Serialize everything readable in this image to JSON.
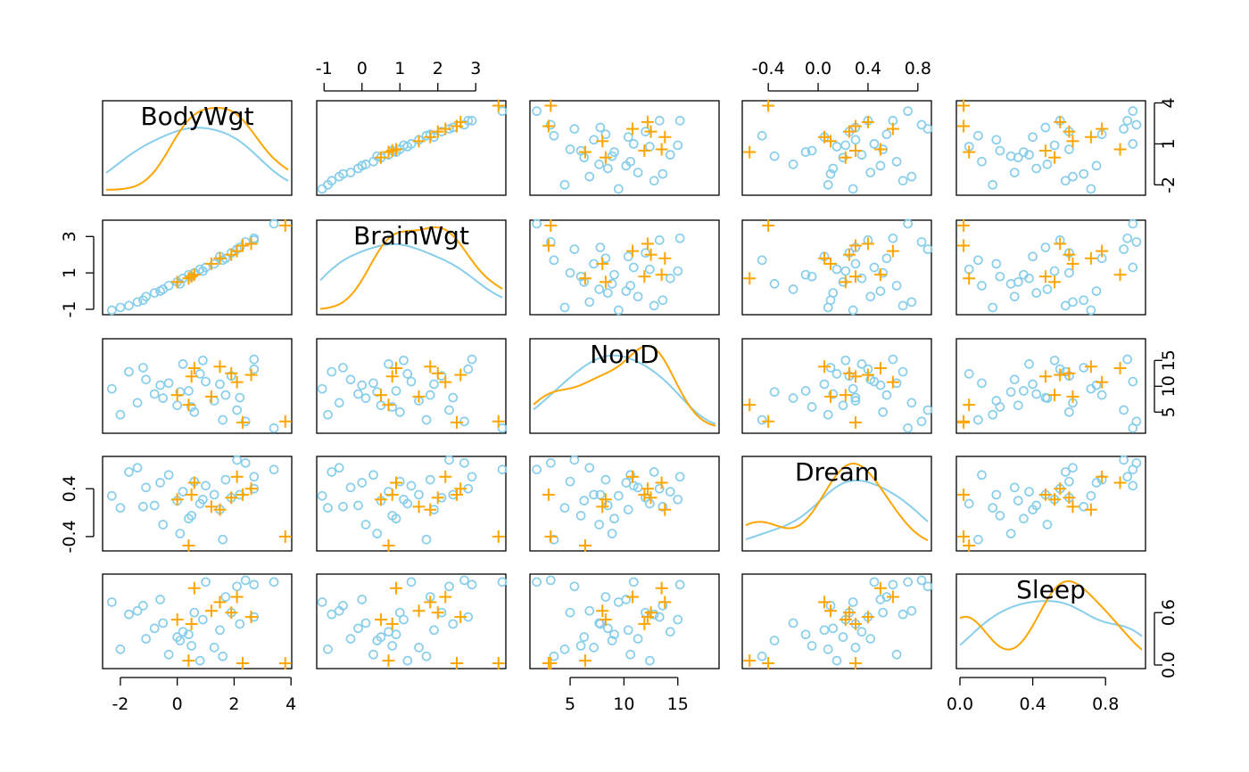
{
  "chart_data": {
    "type": "scatter",
    "variables": [
      "BodyWgt",
      "BrainWgt",
      "NonD",
      "Dream",
      "Sleep"
    ],
    "ranges": [
      [
        -2.5,
        3.9
      ],
      [
        -1.1,
        3.7
      ],
      [
        1.6,
        18.5
      ],
      [
        -0.58,
        0.88
      ],
      [
        0.0,
        1.0
      ]
    ],
    "ticks": [
      [
        -2,
        0,
        2,
        4
      ],
      [
        -1,
        1,
        3
      ],
      [
        5,
        10,
        15
      ],
      [
        -0.4,
        0.4
      ],
      [
        0.0,
        0.6
      ]
    ],
    "tick_labels": [
      [
        "-2",
        "0",
        "2",
        "4"
      ],
      [
        "-1",
        "1",
        "3"
      ],
      [
        "5",
        "10",
        "15"
      ],
      [
        "-0.4",
        "0.4"
      ],
      [
        "0.0",
        "0.6"
      ]
    ],
    "top_axis_ticks": [
      {
        "var": 1,
        "col": 1,
        "values": [
          -1,
          0,
          1,
          2,
          3
        ],
        "labels": [
          "-1",
          "0",
          "1",
          "2",
          "3"
        ]
      },
      {
        "var": 3,
        "col": 3,
        "values": [
          -0.4,
          0.0,
          0.4,
          0.8
        ],
        "labels": [
          "-0.4",
          "0.0",
          "0.4",
          "0.8"
        ]
      }
    ],
    "bottom_axis_ticks": [
      {
        "var": 0,
        "col": 0,
        "values": [
          -2,
          0,
          2,
          4
        ],
        "labels": [
          "-2",
          "0",
          "2",
          "4"
        ]
      },
      {
        "var": 2,
        "col": 2,
        "values": [
          5,
          10,
          15
        ],
        "labels": [
          "5",
          "10",
          "15"
        ]
      },
      {
        "var": 4,
        "col": 4,
        "values": [
          0.0,
          0.4,
          0.8
        ],
        "labels": [
          "0.0",
          "0.4",
          "0.8"
        ]
      }
    ],
    "left_axis_ticks": [
      {
        "var": 1,
        "row": 1,
        "values": [
          -1,
          1,
          3
        ],
        "labels": [
          "-1",
          "1",
          "3"
        ]
      },
      {
        "var": 3,
        "row": 3,
        "values": [
          -0.4,
          0.4
        ],
        "labels": [
          "-0.4",
          "0.4"
        ]
      }
    ],
    "right_axis_ticks": [
      {
        "var": 0,
        "row": 0,
        "values": [
          -2,
          1,
          4
        ],
        "labels": [
          "-2",
          "1",
          "4"
        ]
      },
      {
        "var": 2,
        "row": 2,
        "values": [
          5,
          10,
          15
        ],
        "labels": [
          "5",
          "10",
          "15"
        ]
      },
      {
        "var": 4,
        "row": 4,
        "values": [
          0.0,
          0.6
        ],
        "labels": [
          "0.0",
          "0.6"
        ]
      }
    ],
    "groups": [
      {
        "marker": "circle",
        "color": "#87CEEB",
        "points": [
          [
            3.4,
            3.7,
            1.9,
            0.72,
            0.95
          ],
          [
            2.7,
            2.9,
            15.2,
            0.6,
            0.92
          ],
          [
            2.7,
            2.8,
            13.3,
            0.4,
            0.55
          ],
          [
            2.4,
            2.7,
            3.2,
            0.83,
            0.97
          ],
          [
            2.1,
            2.3,
            5.4,
            0.88,
            0.9
          ],
          [
            1.9,
            2.1,
            12.0,
            0.25,
            0.6
          ],
          [
            1.7,
            1.8,
            8.3,
            0.55,
            0.78
          ],
          [
            1.5,
            1.9,
            10.4,
            0.05,
            0.4
          ],
          [
            1.3,
            1.5,
            7.2,
            0.3,
            0.2
          ],
          [
            1.0,
            1.3,
            10.9,
            0.45,
            0.95
          ],
          [
            0.8,
            1.2,
            12.4,
            0.15,
            0.05
          ],
          [
            0.6,
            1.0,
            5.0,
            0.52,
            0.6
          ],
          [
            0.4,
            0.9,
            9.1,
            -0.1,
            0.35
          ],
          [
            0.2,
            0.7,
            14.3,
            0.35,
            0.38
          ],
          [
            0.0,
            0.5,
            6.3,
            0.2,
            0.32
          ],
          [
            -0.3,
            0.3,
            10.6,
            0.63,
            0.12
          ],
          [
            -0.5,
            0.1,
            7.7,
            -0.2,
            0.48
          ],
          [
            -0.8,
            -0.1,
            8.5,
            0.12,
            0.42
          ],
          [
            -1.1,
            -0.3,
            11.3,
            0.42,
            0.3
          ],
          [
            -1.4,
            -0.6,
            6.8,
            0.75,
            0.62
          ],
          [
            -1.7,
            -0.8,
            12.8,
            0.68,
            0.58
          ],
          [
            -2.0,
            -0.9,
            4.5,
            0.08,
            0.18
          ],
          [
            -2.3,
            -1.05,
            9.5,
            0.28,
            0.72
          ],
          [
            1.6,
            1.7,
            3.5,
            -0.45,
            0.1
          ],
          [
            0.9,
            1.1,
            15.0,
            0.22,
            0.52
          ],
          [
            0.1,
            0.4,
            8.9,
            -0.35,
            0.28
          ],
          [
            -0.6,
            0.0,
            10.2,
            0.5,
            0.75
          ],
          [
            2.2,
            2.4,
            7.8,
            0.3,
            0.47
          ],
          [
            0.5,
            0.8,
            6.0,
            -0.05,
            0.22
          ],
          [
            -1.2,
            -0.5,
            13.6,
            0.1,
            0.68
          ]
        ]
      },
      {
        "marker": "plus",
        "color": "#FFA500",
        "points": [
          [
            3.8,
            3.6,
            3.2,
            -0.4,
            0.02
          ],
          [
            2.3,
            2.5,
            3.0,
            0.3,
            0.02
          ],
          [
            2.1,
            2.2,
            10.8,
            0.6,
            0.78
          ],
          [
            1.9,
            2.0,
            12.5,
            0.25,
            0.6
          ],
          [
            1.5,
            1.8,
            13.8,
            0.05,
            0.72
          ],
          [
            1.2,
            1.5,
            8.0,
            0.1,
            0.62
          ],
          [
            0.6,
            0.9,
            13.5,
            0.5,
            0.88
          ],
          [
            0.4,
            0.7,
            6.4,
            -0.55,
            0.05
          ],
          [
            0.0,
            0.5,
            8.3,
            0.22,
            0.52
          ],
          [
            2.6,
            2.6,
            12.2,
            0.4,
            0.55
          ],
          [
            0.5,
            0.8,
            11.9,
            0.3,
            0.47
          ]
        ]
      }
    ]
  }
}
